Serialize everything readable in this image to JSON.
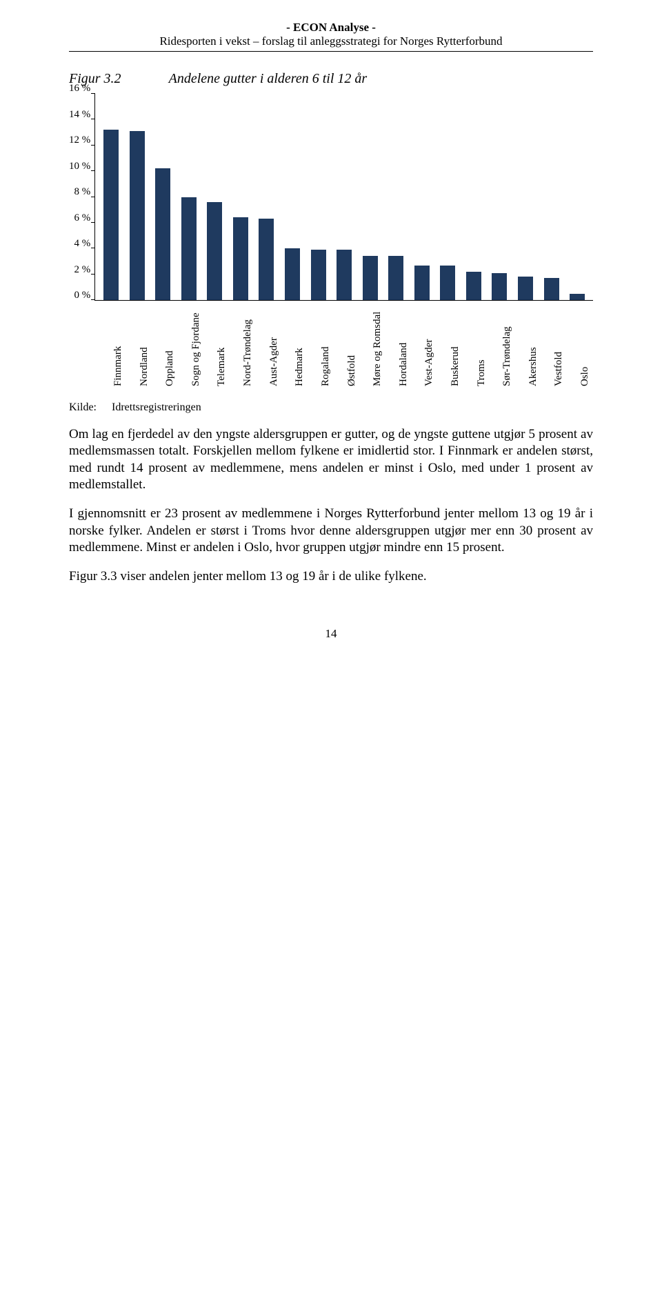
{
  "header": {
    "line1": "- ECON Analyse -",
    "line2": "Ridesporten i vekst – forslag til anleggsstrategi for Norges Rytterforbund"
  },
  "figure": {
    "label": "Figur 3.2",
    "title": "Andelene gutter i alderen 6 til 12 år"
  },
  "chart": {
    "type": "bar",
    "y_ticks": [
      16,
      14,
      12,
      10,
      8,
      6,
      4,
      2,
      0
    ],
    "y_tick_suffix": " %",
    "ymax_pct": 16,
    "bar_color": "#1f3a5f",
    "axis_color": "#000000",
    "bars": [
      {
        "label": "Finnmark",
        "value": 13.2
      },
      {
        "label": "Nordland",
        "value": 13.1
      },
      {
        "label": "Oppland",
        "value": 10.2
      },
      {
        "label": "Sogn og Fjordane",
        "value": 8.0
      },
      {
        "label": "Telemark",
        "value": 7.6
      },
      {
        "label": "Nord-Trøndelag",
        "value": 6.4
      },
      {
        "label": "Aust-Agder",
        "value": 6.3
      },
      {
        "label": "Hedmark",
        "value": 4.0
      },
      {
        "label": "Rogaland",
        "value": 3.9
      },
      {
        "label": "Østfold",
        "value": 3.9
      },
      {
        "label": "Møre og Romsdal",
        "value": 3.4
      },
      {
        "label": "Hordaland",
        "value": 3.4
      },
      {
        "label": "Vest-Agder",
        "value": 2.7
      },
      {
        "label": "Buskerud",
        "value": 2.7
      },
      {
        "label": "Troms",
        "value": 2.2
      },
      {
        "label": "Sør-Trøndelag",
        "value": 2.1
      },
      {
        "label": "Akershus",
        "value": 1.8
      },
      {
        "label": "Vestfold",
        "value": 1.7
      },
      {
        "label": "Oslo",
        "value": 0.5
      }
    ]
  },
  "source": {
    "label": "Kilde:",
    "text": "Idrettsregistreringen"
  },
  "paragraphs": {
    "p1": "Om lag en fjerdedel av den yngste aldersgruppen er gutter, og de yngste guttene utgjør 5 prosent av medlemsmassen totalt. Forskjellen mellom fylkene er imidlertid stor. I Finnmark er andelen størst, med rundt 14 prosent av medlemmene, mens andelen er minst i Oslo, med under 1 prosent av medlemstallet.",
    "p2": "I gjennomsnitt er 23 prosent av medlemmene i Norges Rytterforbund jenter mellom 13 og 19 år i norske fylker. Andelen er størst i Troms hvor denne aldersgruppen utgjør mer enn 30 prosent av medlemmene. Minst er andelen i Oslo, hvor gruppen utgjør mindre enn 15 prosent.",
    "p3": "Figur 3.3 viser andelen jenter mellom 13 og 19 år i de ulike fylkene."
  },
  "page_number": "14"
}
